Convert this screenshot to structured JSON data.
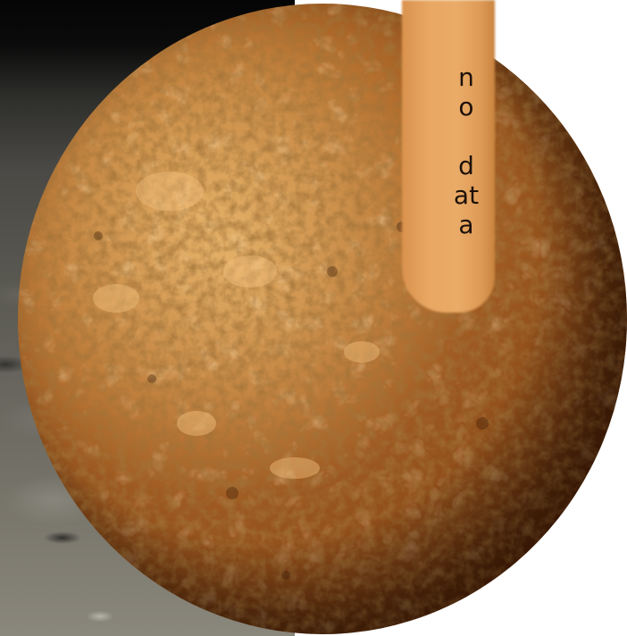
{
  "image": {
    "subject": "planet-globe",
    "label_line1": "no",
    "label_line2": "data"
  },
  "colors": {
    "globe_light": "#c98a43",
    "globe_dark": "#4c230a",
    "strip": "#e9a863",
    "label": "#1c1008",
    "backdrop": "#57564f"
  }
}
